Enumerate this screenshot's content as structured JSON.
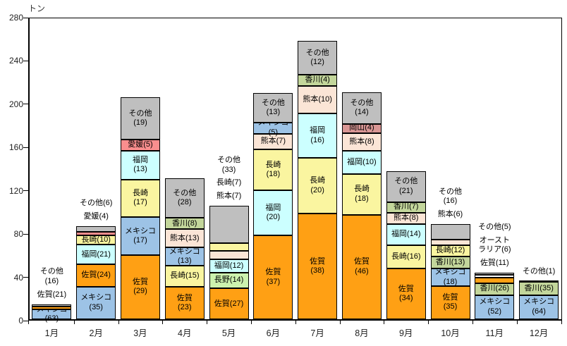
{
  "chart_data": {
    "type": "bar",
    "stacked": true,
    "title": "",
    "xlabel": "",
    "ylabel": "トン",
    "ylim": [
      0,
      280
    ],
    "yticks": [
      0,
      40,
      80,
      120,
      160,
      200,
      240,
      280
    ],
    "grid": false,
    "legend": "none",
    "value_note": "segment labels are percentage shares per month; bar heights read in tons from axis",
    "categories": [
      "1月",
      "2月",
      "3月",
      "4月",
      "5月",
      "6月",
      "7月",
      "8月",
      "9月",
      "10月",
      "11月",
      "12月"
    ],
    "totals_tons_est": [
      14,
      86,
      205,
      130,
      105,
      209,
      257,
      210,
      137,
      88,
      43,
      35
    ],
    "colors": {
      "メキシコ": "#9DC3E6",
      "佐賀": "#FFA014",
      "福岡": "#CCFFFF",
      "長崎": "#FAF5A0",
      "愛媛": "#FA8E8E",
      "香川": "#C3D69B",
      "熊本": "#FBE5D6",
      "岡山": "#D99694",
      "長野": "#CCF2AE",
      "オーストラリア": "#FFFFFF",
      "その他": "#BFBFBF"
    },
    "months": [
      {
        "label": "1月",
        "total": 14,
        "segments": [
          {
            "region": "メキシコ",
            "pct": 63,
            "text": "メキシコ(63)",
            "pos": "in"
          },
          {
            "region": "佐賀",
            "pct": 21,
            "text": "佐賀(21)",
            "pos": "out"
          },
          {
            "region": "その他",
            "pct": 16,
            "text": "その他\n(16)",
            "pos": "out"
          }
        ]
      },
      {
        "label": "2月",
        "total": 86,
        "segments": [
          {
            "region": "メキシコ",
            "pct": 35,
            "text": "メキシコ\n(35)",
            "pos": "in"
          },
          {
            "region": "佐賀",
            "pct": 24,
            "text": "佐賀(24)",
            "pos": "in"
          },
          {
            "region": "福岡",
            "pct": 21,
            "text": "福岡(21)",
            "pos": "in"
          },
          {
            "region": "長崎",
            "pct": 10,
            "text": "長崎(10)",
            "pos": "in"
          },
          {
            "region": "愛媛",
            "pct": 4,
            "text": "愛媛(4)",
            "pos": "out"
          },
          {
            "region": "その他",
            "pct": 6,
            "text": "その他(6)",
            "pos": "out"
          }
        ]
      },
      {
        "label": "3月",
        "total": 205,
        "segments": [
          {
            "region": "佐賀",
            "pct": 29,
            "text": "佐賀\n(29)",
            "pos": "in"
          },
          {
            "region": "メキシコ",
            "pct": 17,
            "text": "メキシコ\n(17)",
            "pos": "in"
          },
          {
            "region": "長崎",
            "pct": 17,
            "text": "長崎\n(17)",
            "pos": "in"
          },
          {
            "region": "福岡",
            "pct": 13,
            "text": "福岡\n(13)",
            "pos": "in"
          },
          {
            "region": "愛媛",
            "pct": 5,
            "text": "愛媛(5)",
            "pos": "in"
          },
          {
            "region": "その他",
            "pct": 19,
            "text": "その他\n(19)",
            "pos": "in"
          }
        ]
      },
      {
        "label": "4月",
        "total": 130,
        "segments": [
          {
            "region": "佐賀",
            "pct": 23,
            "text": "佐賀\n(23)",
            "pos": "in"
          },
          {
            "region": "長崎",
            "pct": 15,
            "text": "長崎(15)",
            "pos": "in"
          },
          {
            "region": "メキシコ",
            "pct": 13,
            "text": "メキシコ(13)",
            "pos": "in"
          },
          {
            "region": "熊本",
            "pct": 13,
            "text": "熊本(13)",
            "pos": "in"
          },
          {
            "region": "香川",
            "pct": 8,
            "text": "香川(8)",
            "pos": "in"
          },
          {
            "region": "その他",
            "pct": 28,
            "text": "その他\n(28)",
            "pos": "in"
          }
        ]
      },
      {
        "label": "5月",
        "total": 105,
        "segments": [
          {
            "region": "佐賀",
            "pct": 27,
            "text": "佐賀(27)",
            "pos": "in"
          },
          {
            "region": "長野",
            "pct": 14,
            "text": "長野(14)",
            "pos": "in"
          },
          {
            "region": "福岡",
            "pct": 12,
            "text": "福岡(12)",
            "pos": "in"
          },
          {
            "region": "熊本",
            "pct": 7,
            "text": "熊本(7)",
            "pos": "out"
          },
          {
            "region": "長崎",
            "pct": 7,
            "text": "長崎(7)",
            "pos": "out"
          },
          {
            "region": "その他",
            "pct": 33,
            "text": "その他\n(33)",
            "pos": "out"
          }
        ]
      },
      {
        "label": "6月",
        "total": 209,
        "segments": [
          {
            "region": "佐賀",
            "pct": 37,
            "text": "佐賀\n(37)",
            "pos": "in"
          },
          {
            "region": "福岡",
            "pct": 20,
            "text": "福岡\n(20)",
            "pos": "in"
          },
          {
            "region": "長崎",
            "pct": 18,
            "text": "長崎\n(18)",
            "pos": "in"
          },
          {
            "region": "熊本",
            "pct": 7,
            "text": "熊本(7)",
            "pos": "in"
          },
          {
            "region": "メキシコ",
            "pct": 5,
            "text": "メキシコ(5)",
            "pos": "in"
          },
          {
            "region": "その他",
            "pct": 13,
            "text": "その他\n(13)",
            "pos": "in"
          }
        ]
      },
      {
        "label": "7月",
        "total": 257,
        "segments": [
          {
            "region": "佐賀",
            "pct": 38,
            "text": "佐賀\n(38)",
            "pos": "in"
          },
          {
            "region": "長崎",
            "pct": 20,
            "text": "長崎\n(20)",
            "pos": "in"
          },
          {
            "region": "福岡",
            "pct": 16,
            "text": "福岡\n(16)",
            "pos": "in"
          },
          {
            "region": "熊本",
            "pct": 10,
            "text": "熊本(10)",
            "pos": "in"
          },
          {
            "region": "香川",
            "pct": 4,
            "text": "香川(4)",
            "pos": "in"
          },
          {
            "region": "その他",
            "pct": 12,
            "text": "その他\n(12)",
            "pos": "in"
          }
        ]
      },
      {
        "label": "8月",
        "total": 210,
        "segments": [
          {
            "region": "佐賀",
            "pct": 46,
            "text": "佐賀\n(46)",
            "pos": "in"
          },
          {
            "region": "長崎",
            "pct": 18,
            "text": "長崎\n(18)",
            "pos": "in"
          },
          {
            "region": "福岡",
            "pct": 10,
            "text": "福岡(10)",
            "pos": "in"
          },
          {
            "region": "熊本",
            "pct": 8,
            "text": "熊本(8)",
            "pos": "in"
          },
          {
            "region": "岡山",
            "pct": 4,
            "text": "岡山(4)",
            "pos": "in"
          },
          {
            "region": "その他",
            "pct": 14,
            "text": "その他\n(14)",
            "pos": "in"
          }
        ]
      },
      {
        "label": "9月",
        "total": 137,
        "segments": [
          {
            "region": "佐賀",
            "pct": 34,
            "text": "佐賀\n(34)",
            "pos": "in"
          },
          {
            "region": "長崎",
            "pct": 16,
            "text": "長崎(16)",
            "pos": "in"
          },
          {
            "region": "福岡",
            "pct": 14,
            "text": "福岡(14)",
            "pos": "in"
          },
          {
            "region": "熊本",
            "pct": 8,
            "text": "熊本(8)",
            "pos": "in"
          },
          {
            "region": "香川",
            "pct": 7,
            "text": "香川(7)",
            "pos": "in"
          },
          {
            "region": "その他",
            "pct": 21,
            "text": "その他\n(21)",
            "pos": "in"
          }
        ]
      },
      {
        "label": "10月",
        "total": 88,
        "segments": [
          {
            "region": "佐賀",
            "pct": 35,
            "text": "佐賀\n(35)",
            "pos": "in"
          },
          {
            "region": "メキシコ",
            "pct": 18,
            "text": "メキシコ(18)",
            "pos": "in"
          },
          {
            "region": "香川",
            "pct": 13,
            "text": "香川(13)",
            "pos": "in"
          },
          {
            "region": "長崎",
            "pct": 12,
            "text": "長崎(12)",
            "pos": "in"
          },
          {
            "region": "熊本",
            "pct": 6,
            "text": "熊本(6)",
            "pos": "out"
          },
          {
            "region": "その他",
            "pct": 16,
            "text": "その他\n(16)",
            "pos": "out"
          }
        ]
      },
      {
        "label": "11月",
        "total": 43,
        "segments": [
          {
            "region": "メキシコ",
            "pct": 52,
            "text": "メキシコ\n(52)",
            "pos": "in"
          },
          {
            "region": "香川",
            "pct": 26,
            "text": "香川(26)",
            "pos": "in"
          },
          {
            "region": "佐賀",
            "pct": 11,
            "text": "佐賀(11)",
            "pos": "out"
          },
          {
            "region": "オーストラリア",
            "pct": 6,
            "text": "オースト\nラリア(6)",
            "pos": "out"
          },
          {
            "region": "その他",
            "pct": 5,
            "text": "その他(5)",
            "pos": "out"
          }
        ]
      },
      {
        "label": "12月",
        "total": 35,
        "segments": [
          {
            "region": "メキシコ",
            "pct": 64,
            "text": "メキシコ\n(64)",
            "pos": "in"
          },
          {
            "region": "香川",
            "pct": 35,
            "text": "香川(35)",
            "pos": "in"
          },
          {
            "region": "その他",
            "pct": 1,
            "text": "その他(1)",
            "pos": "out"
          }
        ]
      }
    ]
  }
}
